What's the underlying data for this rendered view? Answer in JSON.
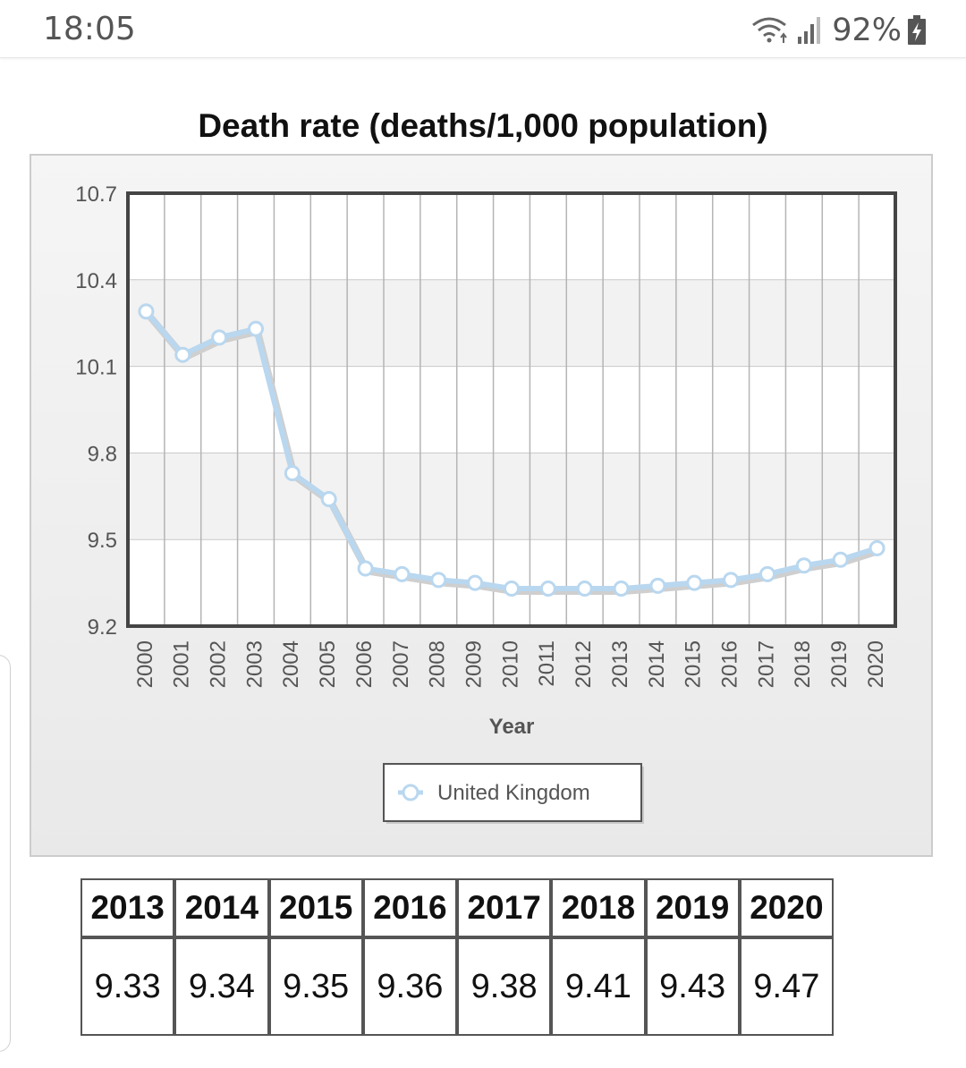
{
  "status_bar": {
    "time": "18:05",
    "battery": "92%",
    "icons": [
      "wifi-icon",
      "signal-icon",
      "battery-charging-icon"
    ]
  },
  "chart_data": {
    "type": "line",
    "title": "Death rate (deaths/1,000 population)",
    "xlabel": "Year",
    "ylabel": "",
    "categories": [
      "2000",
      "2001",
      "2002",
      "2003",
      "2004",
      "2005",
      "2006",
      "2007",
      "2008",
      "2009",
      "2010",
      "2011",
      "2012",
      "2013",
      "2014",
      "2015",
      "2016",
      "2017",
      "2018",
      "2019",
      "2020"
    ],
    "series": [
      {
        "name": "United Kingdom",
        "values": [
          10.29,
          10.14,
          10.2,
          10.23,
          9.73,
          9.64,
          9.4,
          9.38,
          9.36,
          9.35,
          9.33,
          9.33,
          9.33,
          9.33,
          9.34,
          9.35,
          9.36,
          9.38,
          9.41,
          9.43,
          9.47
        ]
      }
    ],
    "ylim": [
      9.2,
      10.7
    ],
    "yticks": [
      "10.7",
      "10.4",
      "10.1",
      "9.8",
      "9.5",
      "9.2"
    ],
    "grid": true,
    "legend_position": "bottom-center",
    "colors": {
      "line": "#b9d7ef",
      "marker_fill": "#ffffff",
      "frame": "#444444"
    }
  },
  "table": {
    "years": [
      "2013",
      "2014",
      "2015",
      "2016",
      "2017",
      "2018",
      "2019",
      "2020"
    ],
    "values": [
      "9.33",
      "9.34",
      "9.35",
      "9.36",
      "9.38",
      "9.41",
      "9.43",
      "9.47"
    ]
  }
}
